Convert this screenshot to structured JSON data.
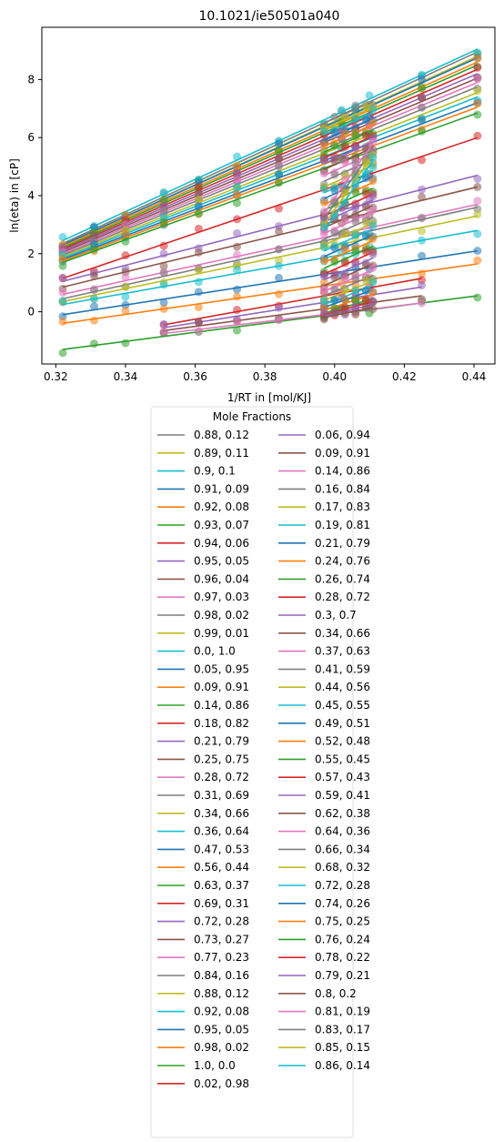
{
  "chart_data": {
    "type": "scatter",
    "title": "10.1021/ie50501a040",
    "xlabel": "1/RT in [mol/KJ]",
    "ylabel": "ln(eta) in [cP]",
    "xlim": [
      0.316,
      0.446
    ],
    "ylim": [
      -1.8,
      9.8
    ],
    "x_ticks": [
      0.32,
      0.34,
      0.36,
      0.38,
      0.4,
      0.42,
      0.44
    ],
    "x_tick_labels": [
      "0.32",
      "0.34",
      "0.36",
      "0.38",
      "0.40",
      "0.42",
      "0.44"
    ],
    "y_ticks": [
      0,
      2,
      4,
      6,
      8
    ],
    "y_tick_labels": [
      "0",
      "2",
      "4",
      "6",
      "8"
    ],
    "legend_title": "Mole Fractions",
    "legend_placement": "below chart, two columns",
    "x_points_full": [
      0.322,
      0.331,
      0.34,
      0.351,
      0.361,
      0.372,
      0.384,
      0.397,
      0.402,
      0.406,
      0.41,
      0.425,
      0.441
    ],
    "x_points_mid": [
      0.351,
      0.361,
      0.372,
      0.384,
      0.397,
      0.402,
      0.406,
      0.41,
      0.425
    ],
    "x_points_short": [
      0.397,
      0.4,
      0.403,
      0.406,
      0.409,
      0.411
    ],
    "colors": [
      "#7f7f7f",
      "#bcbd22",
      "#17becf",
      "#1f77b4",
      "#ff7f0e",
      "#2ca02c",
      "#d62728",
      "#9467bd",
      "#8c564b",
      "#e377c2"
    ],
    "series": [
      {
        "name": "0.88, 0.12",
        "y0": 2.35,
        "y1": 8.95,
        "range": "full"
      },
      {
        "name": "0.89, 0.11",
        "y0": 2.3,
        "y1": 8.8,
        "range": "full"
      },
      {
        "name": "0.9, 0.1",
        "y0": 2.45,
        "y1": 9.05,
        "range": "full"
      },
      {
        "name": "0.91, 0.09",
        "y0": 2.3,
        "y1": 8.75,
        "range": "full"
      },
      {
        "name": "0.92, 0.08",
        "y0": 2.25,
        "y1": 8.6,
        "range": "full"
      },
      {
        "name": "0.93, 0.07",
        "y0": 2.2,
        "y1": 8.5,
        "range": "full"
      },
      {
        "name": "0.94, 0.06",
        "y0": 2.15,
        "y1": 8.35,
        "range": "full"
      },
      {
        "name": "0.95, 0.05",
        "y0": 2.1,
        "y1": 8.2,
        "range": "full"
      },
      {
        "name": "0.96, 0.04",
        "y0": 2.05,
        "y1": 8.05,
        "range": "full"
      },
      {
        "name": "0.97, 0.03",
        "y0": 2.0,
        "y1": 7.9,
        "range": "full"
      },
      {
        "name": "0.98, 0.02",
        "y0": 1.95,
        "y1": 7.75,
        "range": "full"
      },
      {
        "name": "0.99, 0.01",
        "y0": 1.9,
        "y1": 7.55,
        "range": "full"
      },
      {
        "name": "0.0, 1.0",
        "y0": 1.85,
        "y1": 7.4,
        "range": "full"
      },
      {
        "name": "0.05, 0.95",
        "y0": 1.8,
        "y1": 7.2,
        "range": "full"
      },
      {
        "name": "0.09, 0.91",
        "y0": 1.75,
        "y1": 7.05,
        "range": "full"
      },
      {
        "name": "0.14, 0.86",
        "y0": 1.7,
        "y1": 6.85,
        "range": "full"
      },
      {
        "name": "0.18, 0.82",
        "y0": 1.15,
        "y1": 6.0,
        "range": "full"
      },
      {
        "name": "0.21, 0.79",
        "y0": 1.05,
        "y1": 4.7,
        "range": "full"
      },
      {
        "name": "0.25, 0.75",
        "y0": 0.85,
        "y1": 4.3,
        "range": "full"
      },
      {
        "name": "0.28, 0.72",
        "y0": 0.6,
        "y1": 3.7,
        "range": "full"
      },
      {
        "name": "0.31, 0.69",
        "y0": 0.45,
        "y1": 3.6,
        "range": "full"
      },
      {
        "name": "0.34, 0.66",
        "y0": 0.35,
        "y1": 3.3,
        "range": "full"
      },
      {
        "name": "0.36, 0.64",
        "y0": 0.25,
        "y1": 2.8,
        "range": "full"
      },
      {
        "name": "0.47, 0.53",
        "y0": -0.1,
        "y1": 2.1,
        "range": "full"
      },
      {
        "name": "0.56, 0.44",
        "y0": -0.4,
        "y1": 1.65,
        "range": "full"
      },
      {
        "name": "0.63, 0.37",
        "y0": -1.3,
        "y1": 0.55,
        "range": "full"
      },
      {
        "name": "0.69, 0.31",
        "y0": -0.45,
        "y1": 1.15,
        "range": "mid"
      },
      {
        "name": "0.72, 0.28",
        "y0": -0.55,
        "y1": 0.85,
        "range": "mid"
      },
      {
        "name": "0.73, 0.27",
        "y0": -0.65,
        "y1": 0.55,
        "range": "mid"
      },
      {
        "name": "0.77, 0.23",
        "y0": -0.75,
        "y1": 0.3,
        "range": "mid"
      },
      {
        "name": "0.84, 0.16",
        "y0": 6.5,
        "y1": 7.25,
        "range": "short"
      },
      {
        "name": "0.88, 0.12",
        "y0": 6.3,
        "y1": 7.05,
        "range": "short"
      },
      {
        "name": "0.92, 0.08",
        "y0": 6.1,
        "y1": 6.85,
        "range": "short"
      },
      {
        "name": "0.95, 0.05",
        "y0": 5.9,
        "y1": 6.65,
        "range": "short"
      },
      {
        "name": "0.98, 0.02",
        "y0": 5.7,
        "y1": 6.45,
        "range": "short"
      },
      {
        "name": "1.0, 0.0",
        "y0": 5.5,
        "y1": 6.25,
        "range": "short"
      },
      {
        "name": "0.02, 0.98",
        "y0": 5.3,
        "y1": 6.05,
        "range": "short"
      },
      {
        "name": "0.06, 0.94",
        "y0": 5.1,
        "y1": 5.85,
        "range": "short"
      },
      {
        "name": "0.09, 0.91",
        "y0": 4.9,
        "y1": 5.65,
        "range": "short"
      },
      {
        "name": "0.14, 0.86",
        "y0": 4.7,
        "y1": 5.45,
        "range": "short"
      },
      {
        "name": "0.16, 0.84",
        "y0": 4.5,
        "y1": 5.25,
        "range": "short"
      },
      {
        "name": "0.17, 0.83",
        "y0": 4.3,
        "y1": 5.05,
        "range": "short"
      },
      {
        "name": "0.19, 0.81",
        "y0": 4.1,
        "y1": 4.85,
        "range": "short"
      },
      {
        "name": "0.21, 0.79",
        "y0": 3.9,
        "y1": 4.65,
        "range": "short"
      },
      {
        "name": "0.24, 0.76",
        "y0": 3.7,
        "y1": 4.45,
        "range": "short"
      },
      {
        "name": "0.26, 0.74",
        "y0": 3.5,
        "y1": 4.25,
        "range": "short"
      },
      {
        "name": "0.28, 0.72",
        "y0": 3.3,
        "y1": 4.05,
        "range": "short"
      },
      {
        "name": "0.3, 0.7",
        "y0": 3.1,
        "y1": 3.85,
        "range": "short"
      },
      {
        "name": "0.34, 0.66",
        "y0": 2.9,
        "y1": 3.65,
        "range": "short"
      },
      {
        "name": "0.37, 0.63",
        "y0": 2.7,
        "y1": 3.45,
        "range": "short"
      },
      {
        "name": "0.41, 0.59",
        "y0": 2.5,
        "y1": 3.25,
        "range": "short"
      },
      {
        "name": "0.44, 0.56",
        "y0": 2.3,
        "y1": 3.05,
        "range": "short"
      },
      {
        "name": "0.45, 0.55",
        "y0": 2.1,
        "y1": 2.85,
        "range": "short"
      },
      {
        "name": "0.49, 0.51",
        "y0": 1.9,
        "y1": 2.65,
        "range": "short"
      },
      {
        "name": "0.52, 0.48",
        "y0": 1.7,
        "y1": 2.45,
        "range": "short"
      },
      {
        "name": "0.55, 0.45",
        "y0": 1.5,
        "y1": 2.25,
        "range": "short"
      },
      {
        "name": "0.57, 0.43",
        "y0": 1.3,
        "y1": 2.05,
        "range": "short"
      },
      {
        "name": "0.59, 0.41",
        "y0": 1.1,
        "y1": 1.85,
        "range": "short"
      },
      {
        "name": "0.62, 0.38",
        "y0": 0.9,
        "y1": 1.65,
        "range": "short"
      },
      {
        "name": "0.64, 0.36",
        "y0": 0.7,
        "y1": 1.45,
        "range": "short"
      },
      {
        "name": "0.66, 0.34",
        "y0": 0.55,
        "y1": 1.25,
        "range": "short"
      },
      {
        "name": "0.68, 0.32",
        "y0": 0.4,
        "y1": 1.05,
        "range": "short"
      },
      {
        "name": "0.72, 0.28",
        "y0": 0.25,
        "y1": 0.9,
        "range": "short"
      },
      {
        "name": "0.74, 0.26",
        "y0": 0.15,
        "y1": 0.75,
        "range": "short"
      },
      {
        "name": "0.75, 0.25",
        "y0": 0.05,
        "y1": 0.6,
        "range": "short"
      },
      {
        "name": "0.76, 0.24",
        "y0": -0.05,
        "y1": 0.45,
        "range": "short"
      },
      {
        "name": "0.78, 0.22",
        "y0": -0.1,
        "y1": 0.35,
        "range": "short"
      },
      {
        "name": "0.79, 0.21",
        "y0": -0.15,
        "y1": 0.25,
        "range": "short"
      },
      {
        "name": "0.8, 0.2",
        "y0": -0.2,
        "y1": 0.15,
        "range": "short"
      },
      {
        "name": "0.81, 0.19",
        "y0": 3.4,
        "y1": 5.8,
        "range": "short"
      },
      {
        "name": "0.83, 0.17",
        "y0": 3.2,
        "y1": 5.6,
        "range": "short"
      },
      {
        "name": "0.85, 0.15",
        "y0": 3.0,
        "y1": 5.4,
        "range": "short"
      },
      {
        "name": "0.86, 0.14",
        "y0": 2.8,
        "y1": 5.2,
        "range": "short"
      }
    ]
  }
}
